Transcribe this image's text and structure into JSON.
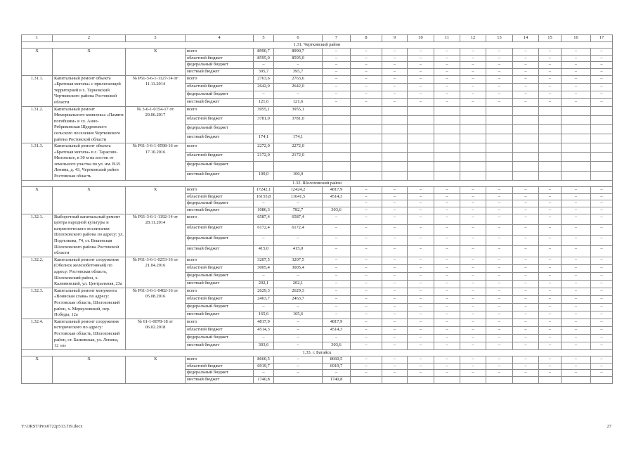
{
  "header_columns": [
    "1",
    "2",
    "3",
    "4",
    "5",
    "6",
    "7",
    "8",
    "9",
    "10",
    "11",
    "12",
    "13",
    "14",
    "15",
    "16",
    "17"
  ],
  "budget_labels": [
    "всего",
    "областной бюджет",
    "федеральный бюджет",
    "местный бюджет"
  ],
  "sections": [
    {
      "title": "1.31. Чертковский район",
      "objects": [
        {
          "num": "X",
          "name": "X",
          "doc": "X",
          "rows": [
            [
              "8990,7",
              "8990,7",
              "–",
              "–"
            ],
            [
              "8595,0",
              "8595,0",
              "–",
              "–"
            ],
            [
              "–",
              "–",
              "–",
              "–"
            ],
            [
              "395,7",
              "395,7",
              "–",
              "–"
            ]
          ]
        },
        {
          "num": "1.31.1.",
          "name": "Капитальный ремонт объекта «Братская могила» с прилегающей территорией в х. Терновский Чертковского района Ростовской области",
          "doc": "№ Р61-3-6-1-1127-14 от 11.11.2014",
          "rows": [
            [
              "2763,6",
              "2763,6",
              "–",
              "–"
            ],
            [
              "2642,0",
              "2642,0",
              "–",
              "–"
            ],
            [
              "–",
              "–",
              "–",
              "–"
            ],
            [
              "121,6",
              "121,6",
              "–",
              "–"
            ]
          ]
        },
        {
          "num": "1.31.2.",
          "name": "Капитальный ремонт Мемориального комплекса «Памяти погибшим» в сл. Анно-Ребриковская Щедровского сельского поселения Чертковского района Ростовской области",
          "doc": "№ 3-6-1-0154-17 от 29.06.2017",
          "rows": [
            [
              "3955,1",
              "3955,1",
              "",
              ""
            ],
            [
              "3781,0",
              "3781,0",
              "",
              ""
            ],
            [
              "",
              "",
              "",
              ""
            ],
            [
              "174,1",
              "174,1",
              "",
              ""
            ]
          ]
        },
        {
          "num": "1.31.3.",
          "name": "Капитальный ремонт объекта «Братская могила» в с. Тарасово-Меловское, в 30 м на восток от земельного участка по ул. им. В.И. Ленина, д. 43, Чертковский район Ростовская область",
          "doc": "№ Р61-3-6-1-0598-16 от 17.10.2016",
          "rows": [
            [
              "2272,0",
              "2272,0",
              "",
              ""
            ],
            [
              "2172,0",
              "2172,0",
              "",
              ""
            ],
            [
              "",
              "",
              "",
              ""
            ],
            [
              "100,0",
              "100,0",
              "",
              ""
            ]
          ]
        }
      ]
    },
    {
      "title": "1.32. Шолоховский район",
      "objects": [
        {
          "num": "X",
          "name": "X",
          "doc": "X",
          "rows": [
            [
              "17242,1",
              "12424,2",
              "4817,9",
              "–"
            ],
            [
              "16155,8",
              "11641,5",
              "4514,3",
              "–"
            ],
            [
              "–",
              "–",
              "",
              "–"
            ],
            [
              "1086,3",
              "782,7",
              "303,6",
              "–"
            ]
          ]
        },
        {
          "num": "1.32.1.",
          "name": "Выборочный капитальный ремонт центра народной культуры и патриотического воспитания Шолоховского района по адресу: ул. Подтелкова, 74, ст. Вешенская Шолоховского района Ростовской области",
          "doc": "№ Р61-3-6-1-1192-14 от 28.11.2014",
          "rows": [
            [
              "6587,4",
              "6587,4",
              "–",
              "–"
            ],
            [
              "6172,4",
              "6172,4",
              "–",
              "–"
            ],
            [
              "–",
              "–",
              "–",
              "–"
            ],
            [
              "415,0",
              "415,0",
              "–",
              "–"
            ]
          ]
        },
        {
          "num": "1.32.2.",
          "name": "Капитальный ремонт сооружения (Обелиск железобетонный) по адресу: Ростовская область, Шолоховский район, х. Калининский, ул. Центральная, 23а",
          "doc": "№ Р61-3-6-1-0253-16 от 21.04.2016",
          "rows": [
            [
              "3207,5",
              "3207,5",
              "–",
              "–"
            ],
            [
              "3005,4",
              "3005,4",
              "–",
              "–"
            ],
            [
              "–",
              "–",
              "–",
              "–"
            ],
            [
              "202,1",
              "202,1",
              "–",
              "–"
            ]
          ]
        },
        {
          "num": "1.32.3.",
          "name": "Капитальный ремонт монумента «Воинская слава» по адресу: Ростовская область, Шолоховский район, х. Меркуловский, пер. Победы, 12а",
          "doc": "№ Р61-3-6-1-0482-16 от 05.08.2016",
          "rows": [
            [
              "2629,3",
              "2629,3",
              "–",
              "–"
            ],
            [
              "2463,7",
              "2463,7",
              "–",
              "–"
            ],
            [
              "–",
              "–",
              "–",
              "–"
            ],
            [
              "165,6",
              "165,6",
              "–",
              "–"
            ]
          ]
        },
        {
          "num": "1.32.4.",
          "name": "Капитальный ремонт сооружения исторического по адресу: Ростовская область, Шолоховский район, ст. Базковская, ул. Ленина, 12 «а»",
          "doc": "№ 61-1-0078-18 от 06.02.2018",
          "rows": [
            [
              "4817,9",
              "–",
              "4817,9",
              "–"
            ],
            [
              "4514,3",
              "–",
              "4514,3",
              "–"
            ],
            [
              "–",
              "–",
              "–",
              "–"
            ],
            [
              "303,6",
              "–",
              "303,6",
              "–"
            ]
          ]
        }
      ]
    },
    {
      "title": "1.33. г. Батайск",
      "objects": [
        {
          "num": "X",
          "name": "X",
          "doc": "X",
          "rows": [
            [
              "8660,5",
              "–",
              "8660,5",
              "–"
            ],
            [
              "6919,7",
              "–",
              "6919,7",
              "–"
            ],
            [
              "–",
              "–",
              "–",
              "–"
            ],
            [
              "1740,8",
              "",
              "1740,8",
              ""
            ]
          ]
        }
      ]
    }
  ],
  "footer": {
    "path": "Y:\\ORST\\Pro\\0722p513.f19.docx",
    "page": "27"
  }
}
